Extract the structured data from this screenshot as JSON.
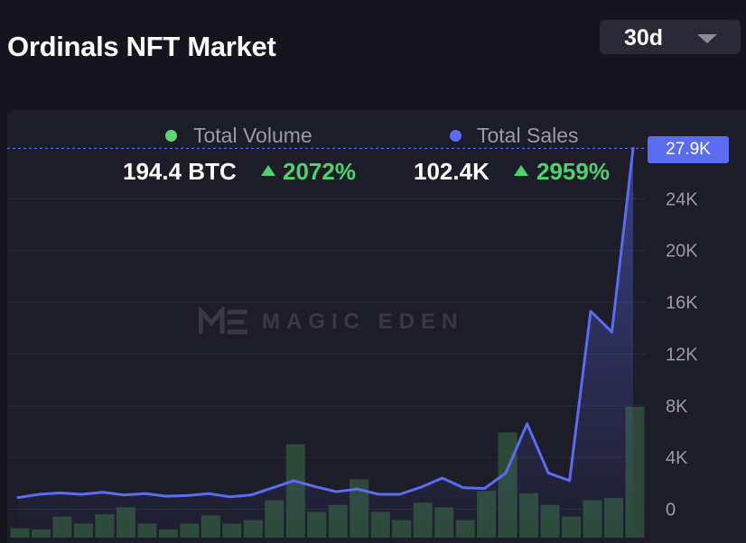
{
  "header": {
    "title": "Ordinals NFT Market",
    "range_value": "30d"
  },
  "legend": {
    "volume_label": "Total Volume",
    "volume_value": "194.4 BTC",
    "volume_change": "2072%",
    "sales_label": "Total Sales",
    "sales_value": "102.4K",
    "sales_change": "2959%"
  },
  "watermark": "MAGIC EDEN",
  "current_value_badge": "27.9K",
  "colors": {
    "volume": "#5dd46f",
    "sales": "#5b6cf1",
    "up": "#4fd16d",
    "bars": "#2c4a37"
  },
  "chart_data": {
    "type": "bar+line",
    "series": [
      {
        "name": "Total Sales",
        "type": "line",
        "axis": "right",
        "values": [
          900,
          1150,
          1250,
          1150,
          1300,
          1100,
          1200,
          1000,
          1050,
          1200,
          950,
          1100,
          1650,
          2200,
          1750,
          1350,
          1550,
          1150,
          1150,
          1700,
          2400,
          1650,
          1600,
          2800,
          6600,
          2800,
          2200,
          15300,
          13700,
          27900
        ]
      },
      {
        "name": "Total Volume",
        "type": "bar",
        "axis": "hidden",
        "values": [
          0.4,
          0.35,
          0.9,
          0.6,
          1.0,
          1.3,
          0.6,
          0.35,
          0.6,
          0.95,
          0.6,
          0.75,
          1.6,
          4.0,
          1.1,
          1.4,
          2.5,
          1.1,
          0.75,
          1.5,
          1.3,
          0.75,
          2.0,
          4.5,
          1.9,
          1.4,
          0.9,
          1.6,
          1.7,
          5.6
        ]
      }
    ],
    "right_axis": {
      "ticks": [
        "0",
        "4K",
        "8K",
        "12K",
        "16K",
        "20K",
        "24K"
      ],
      "tick_values": [
        0,
        4000,
        8000,
        12000,
        16000,
        20000,
        24000
      ],
      "ylim": [
        -2200,
        28000
      ]
    },
    "current_value": "27.9K",
    "grid": true
  }
}
